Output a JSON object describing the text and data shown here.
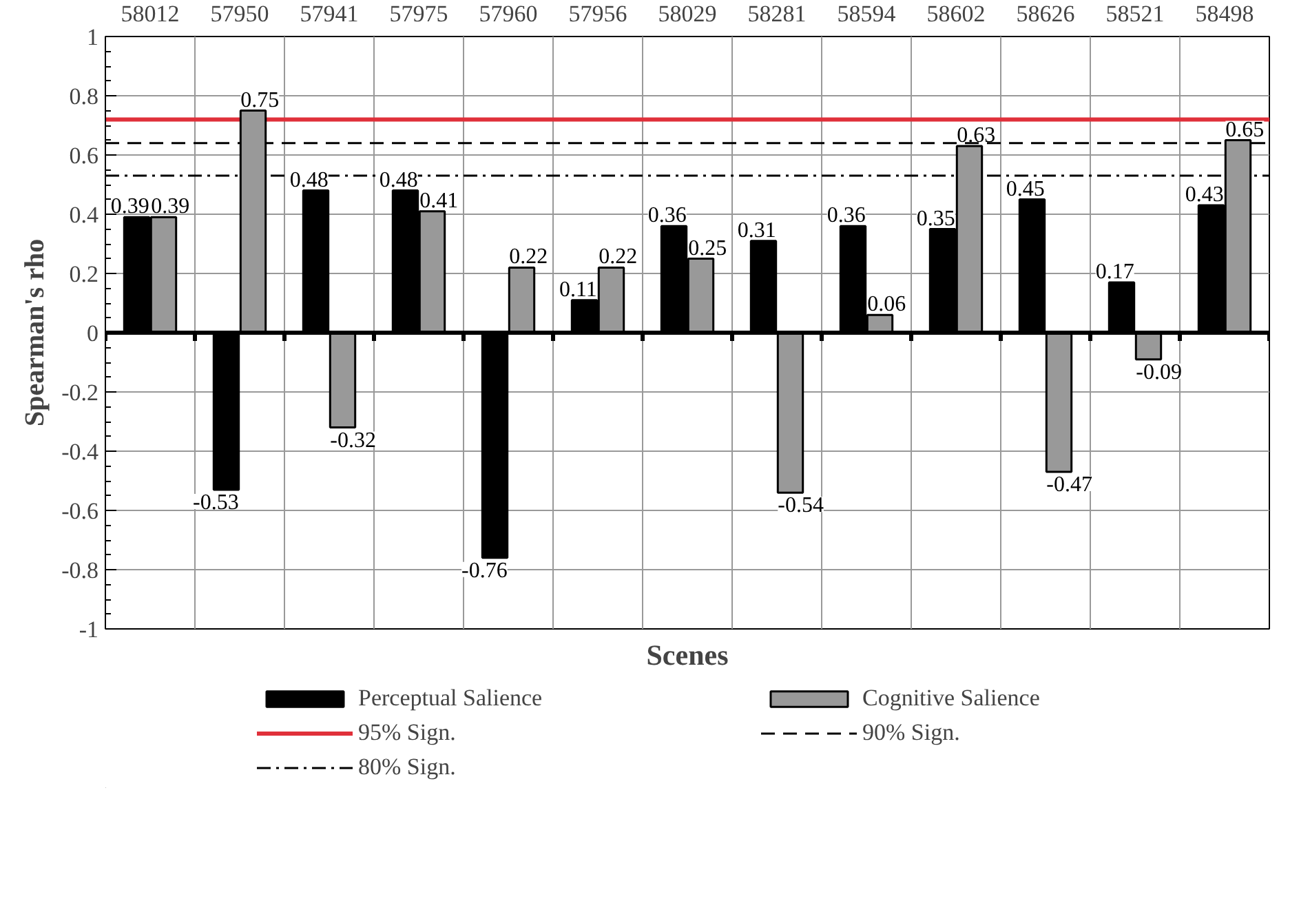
{
  "chart_data": {
    "type": "bar",
    "xlabel": "Scenes",
    "ylabel": "Spearman's rho",
    "categories": [
      "58012",
      "57950",
      "57941",
      "57975",
      "57960",
      "57956",
      "58029",
      "58281",
      "58594",
      "58602",
      "58626",
      "58521",
      "58498"
    ],
    "series": [
      {
        "name": "Perceptual Salience",
        "color": "#000000",
        "values": [
          0.39,
          -0.53,
          0.48,
          0.48,
          -0.76,
          0.11,
          0.36,
          0.31,
          0.36,
          0.35,
          0.45,
          0.17,
          0.43
        ]
      },
      {
        "name": "Cognitive Salience",
        "color": "#999999",
        "values": [
          0.39,
          0.75,
          -0.32,
          0.41,
          0.22,
          0.22,
          0.25,
          -0.54,
          0.06,
          0.63,
          -0.47,
          -0.09,
          0.65
        ]
      }
    ],
    "ref_lines": [
      {
        "axis": "y",
        "value": 0.72,
        "label": "95% Sign.",
        "color": "#e0303a",
        "line_style": "solid"
      },
      {
        "axis": "y",
        "value": 0.64,
        "label": "90% Sign.",
        "color": "#000000",
        "line_style": "dashed"
      },
      {
        "axis": "y",
        "value": 0.53,
        "label": "80% Sign.",
        "color": "#000000",
        "line_style": "dashdot"
      }
    ],
    "ylim": [
      -1,
      1
    ],
    "yticks": [
      -1,
      -0.8,
      -0.6,
      -0.4,
      -0.2,
      0,
      0.2,
      0.4,
      0.6,
      0.8,
      1
    ],
    "grid": true,
    "legend": "bottom",
    "data_labels": true
  }
}
